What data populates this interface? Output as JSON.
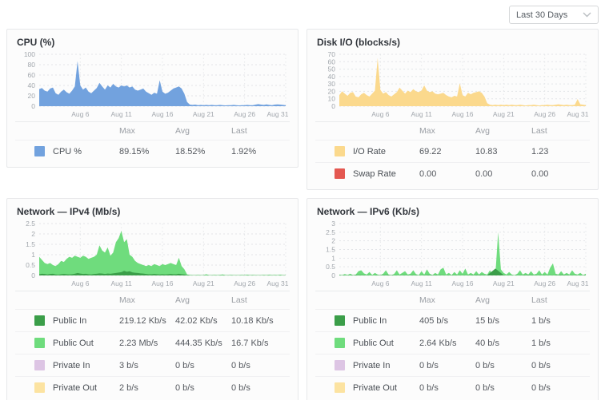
{
  "time_range_selector": {
    "label": "Last 30 Days",
    "icon": "chevron-down"
  },
  "legend_headers": [
    "Max",
    "Avg",
    "Last"
  ],
  "panels": [
    {
      "title": "CPU (%)",
      "legend": [
        {
          "name": "CPU %",
          "color": "#72a2de",
          "max": "89.15%",
          "avg": "18.52%",
          "last": "1.92%"
        }
      ]
    },
    {
      "title": "Disk I/O (blocks/s)",
      "legend": [
        {
          "name": "I/O Rate",
          "color": "#fbd98d",
          "max": "69.22",
          "avg": "10.83",
          "last": "1.23"
        },
        {
          "name": "Swap Rate",
          "color": "#e45851",
          "max": "0.00",
          "avg": "0.00",
          "last": "0.00"
        }
      ]
    },
    {
      "title": "Network — IPv4 (Mb/s)",
      "legend": [
        {
          "name": "Public In",
          "color": "#3b9e49",
          "max": "219.12 Kb/s",
          "avg": "42.02 Kb/s",
          "last": "10.18 Kb/s"
        },
        {
          "name": "Public Out",
          "color": "#6fdc7d",
          "max": "2.23 Mb/s",
          "avg": "444.35 Kb/s",
          "last": "16.7 Kb/s"
        },
        {
          "name": "Private In",
          "color": "#ddc5e4",
          "max": "3 b/s",
          "avg": "0 b/s",
          "last": "0 b/s"
        },
        {
          "name": "Private Out",
          "color": "#fce3a1",
          "max": "2 b/s",
          "avg": "0 b/s",
          "last": "0 b/s"
        }
      ]
    },
    {
      "title": "Network — IPv6 (Kb/s)",
      "legend": [
        {
          "name": "Public In",
          "color": "#3b9e49",
          "max": "405 b/s",
          "avg": "15 b/s",
          "last": "1 b/s"
        },
        {
          "name": "Public Out",
          "color": "#6fdc7d",
          "max": "2.64 Kb/s",
          "avg": "40 b/s",
          "last": "1 b/s"
        },
        {
          "name": "Private In",
          "color": "#ddc5e4",
          "max": "0 b/s",
          "avg": "0 b/s",
          "last": "0 b/s"
        },
        {
          "name": "Private Out",
          "color": "#fce3a1",
          "max": "0 b/s",
          "avg": "0 b/s",
          "last": "0 b/s"
        }
      ]
    }
  ],
  "chart_data": [
    {
      "type": "area",
      "title": "CPU (%)",
      "ylabel": "CPU %",
      "ylim": [
        0,
        100
      ],
      "yticks": [
        0,
        20,
        40,
        60,
        80,
        100
      ],
      "xticks": [
        {
          "day": 6,
          "label": "Aug 6"
        },
        {
          "day": 11,
          "label": "Aug 11"
        },
        {
          "day": 16,
          "label": "Aug 16"
        },
        {
          "day": 21,
          "label": "Aug 21"
        },
        {
          "day": 26,
          "label": "Aug 26"
        },
        {
          "day": 31,
          "label": "Aug 31"
        }
      ],
      "x_range_days": [
        1,
        31
      ],
      "grid": true,
      "legend_position": "bottom",
      "series": [
        {
          "name": "CPU %",
          "color": "#72a2de",
          "values": [
            33,
            35,
            30,
            28,
            34,
            36,
            25,
            22,
            28,
            32,
            27,
            24,
            30,
            38,
            87,
            40,
            32,
            36,
            28,
            25,
            30,
            35,
            45,
            38,
            32,
            40,
            36,
            43,
            38,
            36,
            40,
            38,
            40,
            36,
            38,
            32,
            30,
            32,
            34,
            28,
            25,
            22,
            26,
            24,
            50,
            28,
            24,
            26,
            30,
            34,
            36,
            38,
            34,
            24,
            8,
            3,
            2.5,
            3,
            2,
            2.5,
            2,
            2.5,
            2,
            2.5,
            2,
            2,
            2.5,
            2,
            1.5,
            2,
            2,
            2.5,
            2,
            1.5,
            2,
            2,
            2.5,
            2,
            2,
            3,
            4,
            3,
            2.5,
            3.5,
            2.5,
            2,
            3,
            3.5,
            3,
            2.5,
            2
          ]
        }
      ]
    },
    {
      "type": "area",
      "title": "Disk I/O (blocks/s)",
      "ylim": [
        0,
        70
      ],
      "yticks": [
        0,
        10,
        20,
        30,
        40,
        50,
        60,
        70
      ],
      "xticks": [
        {
          "day": 6,
          "label": "Aug 6"
        },
        {
          "day": 11,
          "label": "Aug 11"
        },
        {
          "day": 16,
          "label": "Aug 16"
        },
        {
          "day": 21,
          "label": "Aug 21"
        },
        {
          "day": 26,
          "label": "Aug 26"
        },
        {
          "day": 31,
          "label": "Aug 31"
        }
      ],
      "x_range_days": [
        1,
        31
      ],
      "grid": true,
      "legend_position": "bottom",
      "series": [
        {
          "name": "I/O Rate",
          "color": "#fbd98d",
          "values": [
            15,
            20,
            17,
            14,
            18,
            19,
            13,
            12,
            16,
            18,
            15,
            13,
            17,
            21,
            65,
            22,
            17,
            19,
            15,
            13,
            16,
            19,
            25,
            21,
            17,
            21,
            19,
            23,
            20,
            19,
            21,
            28,
            21,
            19,
            20,
            17,
            16,
            17,
            18,
            15,
            13,
            12,
            14,
            13,
            31,
            15,
            13,
            18,
            16,
            18,
            19,
            20,
            18,
            13,
            4,
            2,
            1.5,
            2,
            1.5,
            2,
            1.5,
            2,
            1.5,
            2,
            1.5,
            1.5,
            2,
            1.5,
            1,
            1.5,
            1.5,
            2,
            1.5,
            1,
            1.5,
            1.5,
            2,
            1.5,
            1.5,
            2,
            2.5,
            2,
            1.5,
            2,
            1.5,
            1.5,
            2,
            9.5,
            2.5,
            2,
            1.5
          ]
        },
        {
          "name": "Swap Rate",
          "color": "#e45851",
          "values": [
            0,
            0
          ]
        }
      ]
    },
    {
      "type": "area",
      "title": "Network — IPv4 (Mb/s)",
      "ylim": [
        0,
        2.5
      ],
      "yticks": [
        0,
        0.5,
        1,
        1.5,
        2,
        2.5
      ],
      "xticks": [
        {
          "day": 6,
          "label": "Aug 6"
        },
        {
          "day": 11,
          "label": "Aug 11"
        },
        {
          "day": 16,
          "label": "Aug 16"
        },
        {
          "day": 21,
          "label": "Aug 21"
        },
        {
          "day": 26,
          "label": "Aug 26"
        },
        {
          "day": 31,
          "label": "Aug 31"
        }
      ],
      "x_range_days": [
        1,
        31
      ],
      "grid": true,
      "legend_position": "bottom",
      "series": [
        {
          "name": "Public In",
          "color": "#3b9e49",
          "values": [
            0.06,
            0.08,
            0.07,
            0.05,
            0.07,
            0.08,
            0.05,
            0.04,
            0.06,
            0.07,
            0.06,
            0.05,
            0.06,
            0.08,
            0.12,
            0.09,
            0.07,
            0.08,
            0.06,
            0.05,
            0.07,
            0.08,
            0.1,
            0.09,
            0.07,
            0.09,
            0.08,
            0.1,
            0.12,
            0.14,
            0.16,
            0.22,
            0.18,
            0.2,
            0.15,
            0.13,
            0.12,
            0.1,
            0.09,
            0.07,
            0.06,
            0.06,
            0.07,
            0.06,
            0.05,
            0.06,
            0.05,
            0.06,
            0.07,
            0.06,
            0.06,
            0.08,
            0.06,
            0.05,
            0.02,
            0.01,
            0.01,
            0.01,
            0.01,
            0.01,
            0.01,
            0.01,
            0.01,
            0.01,
            0.01,
            0.01,
            0.01,
            0.01,
            0.01,
            0.01,
            0.01,
            0.01,
            0.01,
            0.01,
            0.01,
            0.01,
            0.01,
            0.01,
            0.01,
            0.01,
            0.01,
            0.01,
            0.01,
            0.01,
            0.01,
            0.01,
            0.01,
            0.01,
            0.01,
            0.01,
            0.01
          ]
        },
        {
          "name": "Public Out",
          "color": "#6fdc7d",
          "values": [
            0.9,
            0.75,
            0.6,
            0.55,
            0.6,
            0.5,
            0.45,
            0.55,
            0.7,
            0.65,
            0.8,
            0.9,
            0.85,
            0.95,
            0.9,
            0.85,
            0.95,
            0.9,
            0.8,
            0.85,
            0.9,
            1.0,
            1.45,
            1.2,
            1.1,
            1.35,
            0.95,
            1.1,
            1.6,
            1.8,
            2.15,
            1.6,
            1.75,
            1.0,
            0.9,
            0.7,
            0.6,
            0.55,
            0.5,
            0.45,
            0.5,
            0.45,
            0.55,
            0.5,
            0.45,
            0.55,
            0.5,
            0.55,
            0.6,
            0.55,
            0.5,
            0.85,
            0.45,
            0.3,
            0.05,
            0.03,
            0.02,
            0.02,
            0.03,
            0.02,
            0.02,
            0.06,
            0.02,
            0.02,
            0.03,
            0.02,
            0.03,
            0.05,
            0.02,
            0.02,
            0.03,
            0.02,
            0.02,
            0.02,
            0.03,
            0.02,
            0.04,
            0.02,
            0.03,
            0.02,
            0.02,
            0.02,
            0.03,
            0.02,
            0.04,
            0.02,
            0.03,
            0.02,
            0.04,
            0.02,
            0.02
          ]
        },
        {
          "name": "Private In",
          "color": "#ddc5e4",
          "values": [
            0,
            0
          ]
        },
        {
          "name": "Private Out",
          "color": "#fce3a1",
          "values": [
            0,
            0
          ]
        }
      ]
    },
    {
      "type": "area",
      "title": "Network — IPv6 (Kb/s)",
      "ylim": [
        0,
        3
      ],
      "yticks": [
        0,
        0.5,
        1,
        1.5,
        2,
        2.5,
        3
      ],
      "xticks": [
        {
          "day": 6,
          "label": "Aug 6"
        },
        {
          "day": 11,
          "label": "Aug 11"
        },
        {
          "day": 16,
          "label": "Aug 16"
        },
        {
          "day": 21,
          "label": "Aug 21"
        },
        {
          "day": 26,
          "label": "Aug 26"
        },
        {
          "day": 31,
          "label": "Aug 31"
        }
      ],
      "x_range_days": [
        1,
        31
      ],
      "grid": true,
      "legend_position": "bottom",
      "series": [
        {
          "name": "Public In",
          "color": "#3b9e49",
          "values": [
            0.02,
            0.01,
            0.03,
            0.02,
            0.01,
            0.02,
            0.03,
            0.01,
            0.02,
            0.02,
            0.01,
            0.03,
            0.02,
            0.01,
            0.02,
            0.01,
            0.02,
            0.03,
            0.01,
            0.4,
            0.02,
            0.01,
            0.02,
            0.03,
            0.01,
            0.02,
            0.01,
            0.03,
            0.02,
            0.01,
            0.02
          ]
        },
        {
          "name": "Public Out",
          "color": "#6fdc7d",
          "values": [
            0.05,
            0.02,
            0.08,
            0.03,
            0.1,
            0.02,
            0.05,
            0.25,
            0.3,
            0.12,
            0.05,
            0.2,
            0.03,
            0.15,
            0.05,
            0.02,
            0.1,
            0.3,
            0.05,
            0.02,
            0.08,
            0.3,
            0.05,
            0.15,
            0.25,
            0.05,
            0.1,
            0.3,
            0.08,
            0.02,
            0.25,
            0.05,
            0.35,
            0.1,
            0.02,
            0.15,
            0.05,
            0.35,
            0.45,
            0.05,
            0.15,
            0.02,
            0.2,
            0.05,
            0.3,
            0.1,
            0.4,
            0.05,
            0.15,
            0.05,
            0.25,
            0.05,
            0.2,
            0.1,
            0.05,
            0.3,
            0.05,
            0.1,
            2.5,
            0.35,
            0.15,
            0.05,
            0.2,
            0.05,
            0.02,
            0.1,
            0.3,
            0.05,
            0.15,
            0.05,
            0.25,
            0.05,
            0.1,
            0.3,
            0.05,
            0.2,
            0.05,
            0.45,
            0.7,
            0.1,
            0.05,
            0.25,
            0.05,
            0.15,
            0.05,
            0.3,
            0.1,
            0.05,
            0.15,
            0.02,
            0.1
          ]
        },
        {
          "name": "Private In",
          "color": "#ddc5e4",
          "values": [
            0,
            0
          ]
        },
        {
          "name": "Private Out",
          "color": "#fce3a1",
          "values": [
            0,
            0
          ]
        }
      ]
    }
  ]
}
